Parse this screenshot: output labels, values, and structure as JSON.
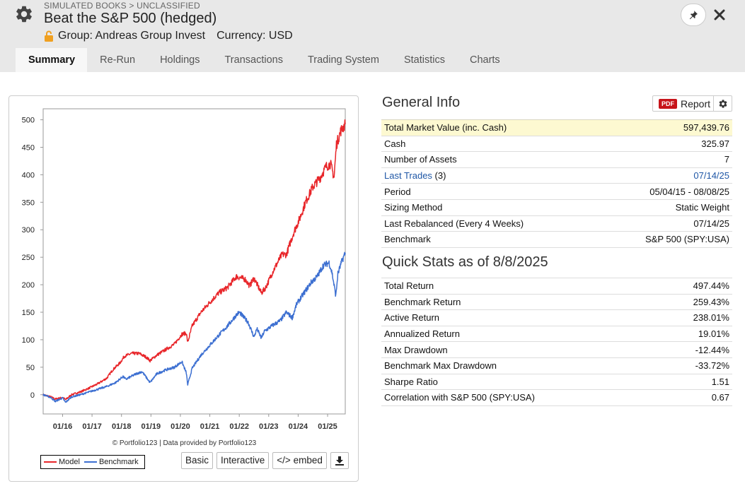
{
  "header": {
    "breadcrumb": "SIMULATED BOOKS > UNCLASSIFIED",
    "title": "Beat the S&P 500 (hedged)",
    "group": "Group: Andreas Group Invest",
    "currency": "Currency: USD"
  },
  "tabs": [
    {
      "label": "Summary"
    },
    {
      "label": "Re-Run"
    },
    {
      "label": "Holdings"
    },
    {
      "label": "Transactions"
    },
    {
      "label": "Trading System"
    },
    {
      "label": "Statistics"
    },
    {
      "label": "Charts"
    }
  ],
  "chart_controls": {
    "credit": "© Portfolio123 | Data provided by Portfolio123",
    "basic": "Basic",
    "interactive": "Interactive",
    "embed": "</> embed"
  },
  "chart_data": {
    "type": "line",
    "ylim": [
      -35,
      520
    ],
    "y_ticks": [
      0,
      50,
      100,
      150,
      200,
      250,
      300,
      350,
      400,
      450,
      500
    ],
    "x_ticks": [
      "01/16",
      "01/17",
      "01/18",
      "01/19",
      "01/20",
      "01/21",
      "01/22",
      "01/23",
      "01/24",
      "01/25"
    ],
    "x_tick_years": [
      2016,
      2017,
      2018,
      2019,
      2020,
      2021,
      2022,
      2023,
      2024,
      2025
    ],
    "xlim": [
      2015.34,
      2025.6
    ],
    "legend_position": "bottom-left",
    "grid": false,
    "series": [
      {
        "name": "Model",
        "color": "#e8262a",
        "points": [
          [
            2015.34,
            0
          ],
          [
            2015.6,
            -4
          ],
          [
            2015.75,
            -8
          ],
          [
            2016.0,
            -5
          ],
          [
            2016.1,
            -9
          ],
          [
            2016.3,
            0
          ],
          [
            2016.6,
            5
          ],
          [
            2016.9,
            12
          ],
          [
            2017.2,
            20
          ],
          [
            2017.5,
            30
          ],
          [
            2017.7,
            45
          ],
          [
            2017.95,
            58
          ],
          [
            2018.1,
            70
          ],
          [
            2018.35,
            75
          ],
          [
            2018.6,
            75
          ],
          [
            2018.85,
            68
          ],
          [
            2018.97,
            62
          ],
          [
            2019.2,
            72
          ],
          [
            2019.5,
            82
          ],
          [
            2019.8,
            92
          ],
          [
            2020.05,
            110
          ],
          [
            2020.2,
            112
          ],
          [
            2020.25,
            95
          ],
          [
            2020.4,
            125
          ],
          [
            2020.7,
            150
          ],
          [
            2021.0,
            168
          ],
          [
            2021.3,
            185
          ],
          [
            2021.6,
            195
          ],
          [
            2021.9,
            215
          ],
          [
            2022.2,
            210
          ],
          [
            2022.35,
            198
          ],
          [
            2022.5,
            212
          ],
          [
            2022.75,
            185
          ],
          [
            2022.9,
            195
          ],
          [
            2023.15,
            225
          ],
          [
            2023.45,
            255
          ],
          [
            2023.6,
            255
          ],
          [
            2023.85,
            295
          ],
          [
            2024.05,
            320
          ],
          [
            2024.25,
            350
          ],
          [
            2024.5,
            378
          ],
          [
            2024.75,
            395
          ],
          [
            2024.95,
            415
          ],
          [
            2025.1,
            420
          ],
          [
            2025.22,
            395
          ],
          [
            2025.3,
            455
          ],
          [
            2025.45,
            480
          ],
          [
            2025.6,
            492
          ]
        ]
      },
      {
        "name": "Benchmark",
        "color": "#3c6fd1",
        "points": [
          [
            2015.34,
            0
          ],
          [
            2015.6,
            -5
          ],
          [
            2015.75,
            -12
          ],
          [
            2016.0,
            -6
          ],
          [
            2016.1,
            -14
          ],
          [
            2016.3,
            -4
          ],
          [
            2016.6,
            0
          ],
          [
            2016.9,
            5
          ],
          [
            2017.2,
            10
          ],
          [
            2017.5,
            15
          ],
          [
            2017.8,
            22
          ],
          [
            2018.05,
            33
          ],
          [
            2018.15,
            28
          ],
          [
            2018.5,
            38
          ],
          [
            2018.7,
            42
          ],
          [
            2018.97,
            22
          ],
          [
            2019.2,
            38
          ],
          [
            2019.5,
            45
          ],
          [
            2019.8,
            50
          ],
          [
            2020.05,
            60
          ],
          [
            2020.2,
            40
          ],
          [
            2020.25,
            18
          ],
          [
            2020.4,
            48
          ],
          [
            2020.7,
            72
          ],
          [
            2021.0,
            90
          ],
          [
            2021.3,
            108
          ],
          [
            2021.6,
            125
          ],
          [
            2021.9,
            145
          ],
          [
            2022.0,
            150
          ],
          [
            2022.3,
            132
          ],
          [
            2022.5,
            105
          ],
          [
            2022.6,
            120
          ],
          [
            2022.75,
            103
          ],
          [
            2022.85,
            115
          ],
          [
            2023.1,
            125
          ],
          [
            2023.4,
            135
          ],
          [
            2023.6,
            150
          ],
          [
            2023.8,
            140
          ],
          [
            2023.95,
            165
          ],
          [
            2024.2,
            185
          ],
          [
            2024.45,
            205
          ],
          [
            2024.65,
            215
          ],
          [
            2024.85,
            235
          ],
          [
            2025.05,
            240
          ],
          [
            2025.15,
            222
          ],
          [
            2025.28,
            180
          ],
          [
            2025.35,
            220
          ],
          [
            2025.5,
            245
          ],
          [
            2025.6,
            258
          ]
        ]
      }
    ]
  },
  "general_info": {
    "title": "General Info",
    "report_badge": "PDF",
    "report_label": "Report",
    "rows": [
      {
        "label": "Total Market Value (inc. Cash)",
        "value": "597,439.76"
      },
      {
        "label": "Cash",
        "value": "325.97"
      },
      {
        "label": "Number of Assets",
        "value": "7"
      },
      {
        "label": "Last Trades",
        "label_suffix": " (3)",
        "value": "07/14/25"
      },
      {
        "label": "Period",
        "value": "05/04/15 - 08/08/25"
      },
      {
        "label": "Sizing Method",
        "value": "Static Weight"
      },
      {
        "label": "Last Rebalanced (Every 4 Weeks)",
        "value": "07/14/25"
      },
      {
        "label": "Benchmark",
        "value": "S&P 500 (SPY:USA)"
      }
    ]
  },
  "quick_stats": {
    "title": "Quick Stats as of 8/8/2025",
    "rows": [
      {
        "label": "Total Return",
        "value": "497.44%"
      },
      {
        "label": "Benchmark Return",
        "value": "259.43%"
      },
      {
        "label": "Active Return",
        "value": "238.01%"
      },
      {
        "label": "Annualized Return",
        "value": "19.01%"
      },
      {
        "label": "Max Drawdown",
        "value": "-12.44%"
      },
      {
        "label": "Benchmark Max Drawdown",
        "value": "-33.72%"
      },
      {
        "label": "Sharpe Ratio",
        "value": "1.51"
      },
      {
        "label": "Correlation with S&P 500 (SPY:USA)",
        "value": "0.67"
      }
    ]
  },
  "colors": {
    "header_bg": "#e8e8e8",
    "highlight_row": "#fdf9d1",
    "link": "#1f57a6",
    "negative": "#c0131a",
    "pdf_badge": "#c7141a"
  }
}
